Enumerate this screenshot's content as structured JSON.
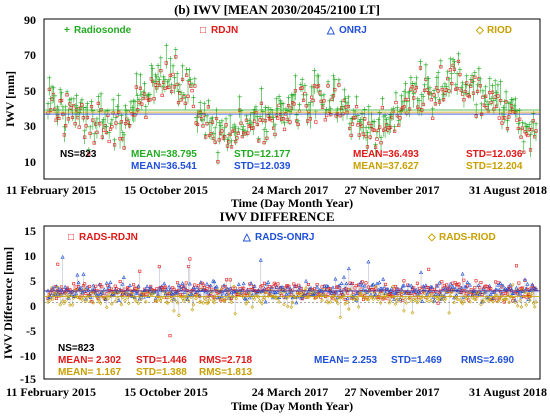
{
  "colors": {
    "radiosonde": "#22aa22",
    "rdjn": "#e01818",
    "onrj": "#1f4fd8",
    "riod": "#c8a000",
    "axis": "#000000"
  },
  "chart_data": [
    {
      "type": "scatter",
      "title": "(b) IWV [MEAN 2030/2045/2100 LT]",
      "xlabel": "Time (Day Month Year)",
      "ylabel": "IWV [mm]",
      "ylim": [
        0,
        90
      ],
      "yticks": [
        "90",
        "70",
        "50",
        "30",
        "10"
      ],
      "xticks": [
        "11 February 2015",
        "15 October 2015",
        "24 March 2017",
        "27 November 2017",
        "31 August 2018"
      ],
      "legend": [
        "Radiosonde",
        "RDJN",
        "ONRJ",
        "RIOD"
      ],
      "ns": "NS=823",
      "stats": {
        "radiosonde": {
          "mean": "MEAN=38.795",
          "std": "STD=12.177"
        },
        "onrj": {
          "mean": "MEAN=36.541",
          "std": "STD=12.039"
        },
        "rdjn": {
          "mean": "MEAN=36.493",
          "std": "STD=12.036"
        },
        "riod": {
          "mean": "MEAN=37.627",
          "std": "STD=12.204"
        }
      },
      "mean_lines": {
        "radiosonde": 38.8,
        "rdjn": 36.5,
        "onrj": 36.5,
        "riod": 37.6
      },
      "seasonal_envelope": {
        "x": [
          0.0,
          0.04,
          0.08,
          0.12,
          0.16,
          0.19,
          0.22,
          0.25,
          0.28,
          0.3,
          0.33,
          0.37,
          0.41,
          0.44,
          0.48,
          0.52,
          0.56,
          0.6,
          0.64,
          0.67,
          0.7,
          0.73,
          0.76,
          0.8,
          0.84,
          0.88,
          0.92,
          0.96,
          1.0
        ],
        "y": [
          45,
          40,
          34,
          30,
          33,
          44,
          55,
          60,
          53,
          42,
          32,
          26,
          28,
          32,
          38,
          44,
          46,
          42,
          30,
          25,
          32,
          42,
          50,
          53,
          56,
          52,
          42,
          32,
          28
        ]
      }
    },
    {
      "type": "scatter",
      "title": "IWV DIFFERENCE",
      "xlabel": "Time (Day Month Year)",
      "ylabel": "IWV Difference [mm]",
      "ylim": [
        -15,
        15
      ],
      "yticks": [
        "15",
        "10",
        "5",
        "0",
        "-5",
        "-10",
        "-15"
      ],
      "xticks": [
        "11 February 2015",
        "15 October 2015",
        "24 March 2017",
        "27 November 2017",
        "31 August 2018"
      ],
      "legend": [
        "RADS-RDJN",
        "RADS-ONRJ",
        "RADS-RIOD"
      ],
      "ns": "NS=823",
      "stats": {
        "rdjn": {
          "mean": "MEAN= 2.302",
          "std": "STD=1.446",
          "rms": "RMS=2.718"
        },
        "riod": {
          "mean": "MEAN= 1.167",
          "std": "STD=1.388",
          "rms": "RMS=1.813"
        },
        "onrj": {
          "mean": "MEAN= 2.253",
          "std": "STD=1.469",
          "rms": "RMS=2.690"
        }
      },
      "mean_lines": {
        "rdjn": 2.3,
        "onrj": 2.25,
        "riod": 1.17
      },
      "zero_line": 0
    }
  ]
}
